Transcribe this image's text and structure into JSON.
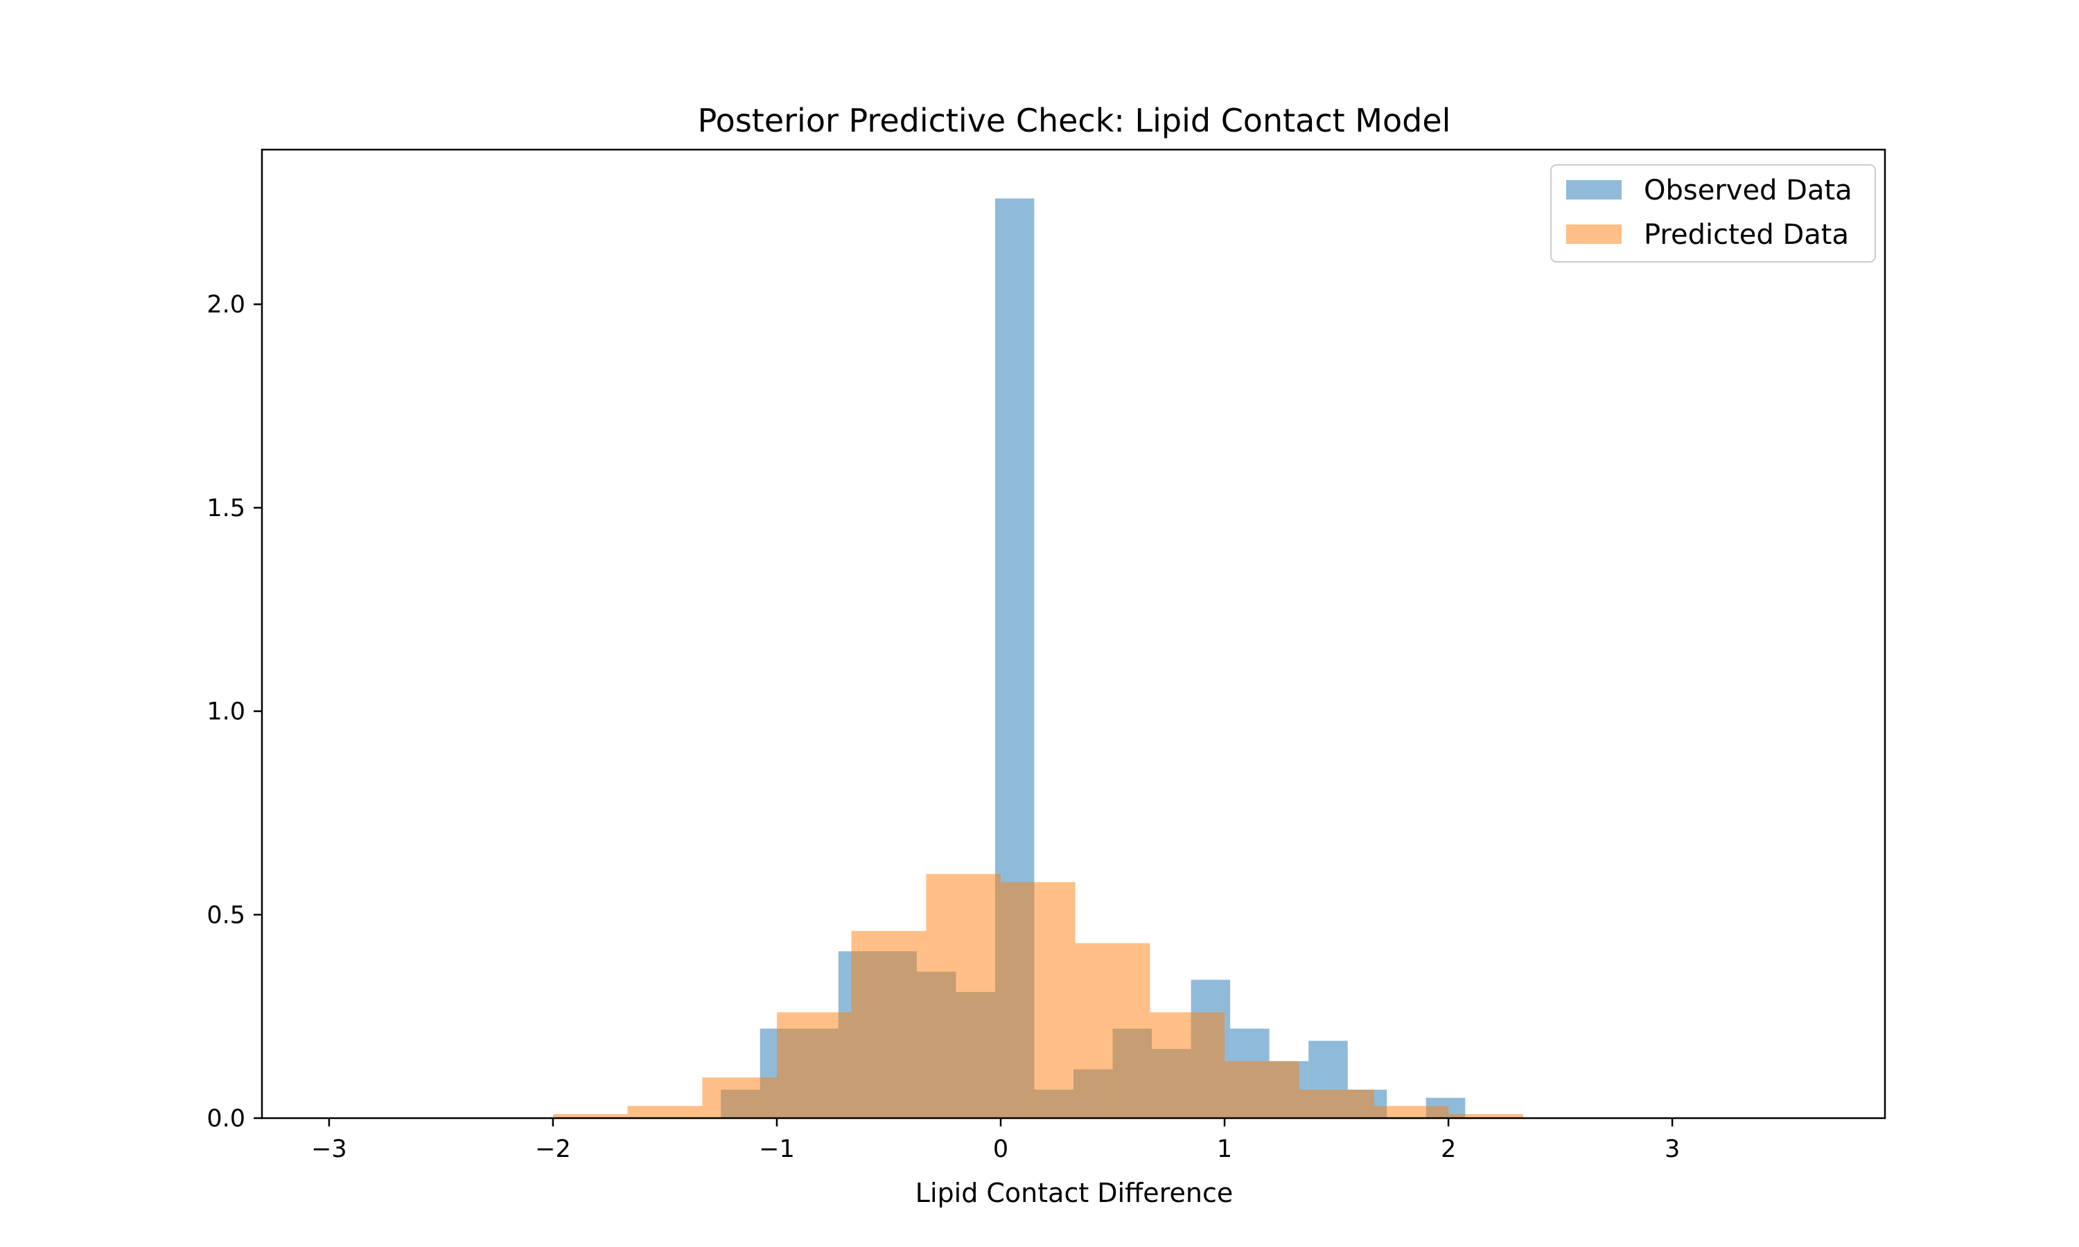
{
  "chart_data": {
    "type": "bar",
    "title": "Posterior Predictive Check: Lipid Contact Model",
    "xlabel": "Lipid Contact Difference",
    "ylabel": "",
    "xlim": [
      -3.3,
      3.95
    ],
    "ylim": [
      0,
      2.38
    ],
    "grid": false,
    "legend_position": "top-right",
    "x_ticks": [
      {
        "value": -3,
        "label": "−3"
      },
      {
        "value": -2,
        "label": "−2"
      },
      {
        "value": -1,
        "label": "−1"
      },
      {
        "value": 0,
        "label": "0"
      },
      {
        "value": 1,
        "label": "1"
      },
      {
        "value": 2,
        "label": "2"
      },
      {
        "value": 3,
        "label": "3"
      }
    ],
    "y_ticks": [
      {
        "value": 0,
        "label": "0.0"
      },
      {
        "value": 0.5,
        "label": "0.5"
      },
      {
        "value": 1,
        "label": "1.0"
      },
      {
        "value": 1.5,
        "label": "1.5"
      },
      {
        "value": 2,
        "label": "2.0"
      }
    ],
    "series": [
      {
        "name": "Observed Data",
        "color": "#1f77b4",
        "opacity": 0.5,
        "bin_edges": [
          -3.0,
          -2.825,
          -2.65,
          -2.475,
          -2.3,
          -2.125,
          -1.95,
          -1.775,
          -1.6,
          -1.425,
          -1.25,
          -1.075,
          -0.9,
          -0.725,
          -0.55,
          -0.375,
          -0.2,
          -0.025,
          0.15,
          0.325,
          0.5,
          0.675,
          0.85,
          1.025,
          1.2,
          1.375,
          1.55,
          1.725,
          1.9,
          2.075,
          2.25,
          2.425,
          2.6,
          2.775,
          2.95,
          3.125,
          3.3,
          3.475,
          3.65
        ],
        "values": [
          0,
          0,
          0,
          0,
          0,
          0,
          0,
          0,
          0,
          0,
          0.07,
          0.22,
          0.22,
          0.41,
          0.41,
          0.36,
          0.31,
          2.26,
          0.07,
          0.12,
          0.22,
          0.17,
          0.34,
          0.22,
          0.14,
          0.19,
          0.07,
          0,
          0.05,
          0,
          0,
          0,
          0,
          0,
          0,
          0,
          0,
          0
        ]
      },
      {
        "name": "Predicted Data",
        "color": "#ff7f0e",
        "opacity": 0.5,
        "bin_edges": [
          -2.0,
          -1.667,
          -1.333,
          -1.0,
          -0.667,
          -0.333,
          0.0,
          0.333,
          0.667,
          1.0,
          1.333,
          1.667,
          2.0,
          2.333
        ],
        "values": [
          0.01,
          0.03,
          0.1,
          0.26,
          0.46,
          0.6,
          0.58,
          0.43,
          0.26,
          0.14,
          0.07,
          0.03,
          0.01
        ]
      }
    ]
  }
}
